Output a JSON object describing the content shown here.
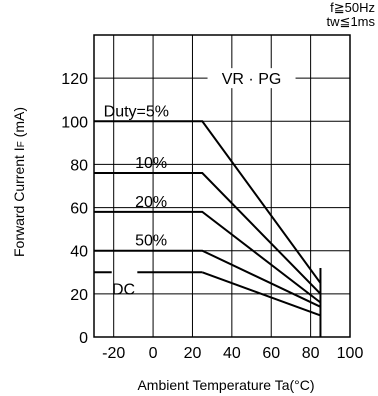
{
  "chart_data": {
    "type": "line",
    "xlabel": "Ambient Temperature  Ta(°C)",
    "ylabel_main": "Forward Current  I",
    "ylabel_sub": "F",
    "ylabel_unit": " (mA)",
    "xlim": [
      -30,
      100
    ],
    "ylim": [
      0,
      140
    ],
    "x_ticks": [
      -20,
      0,
      20,
      40,
      60,
      80,
      100
    ],
    "y_ticks": [
      0,
      20,
      40,
      60,
      80,
      100,
      120
    ],
    "grid": true,
    "conditions": [
      "f≧50Hz",
      "tw≦1ms"
    ],
    "family_label": "VR · PG",
    "series": [
      {
        "name": "Duty=5%",
        "x": [
          -30,
          25,
          85
        ],
        "y": [
          100,
          100,
          25
        ]
      },
      {
        "name": "10%",
        "x": [
          -30,
          25,
          85
        ],
        "y": [
          76,
          76,
          20
        ]
      },
      {
        "name": "20%",
        "x": [
          -30,
          25,
          85
        ],
        "y": [
          58,
          58,
          16
        ]
      },
      {
        "name": "50%",
        "x": [
          -30,
          25,
          85
        ],
        "y": [
          40,
          40,
          14
        ]
      },
      {
        "name": "DC",
        "x": [
          -30,
          25,
          85
        ],
        "y": [
          30,
          30,
          10
        ]
      }
    ],
    "cutoff": {
      "x": 85,
      "y_top": 32
    }
  }
}
